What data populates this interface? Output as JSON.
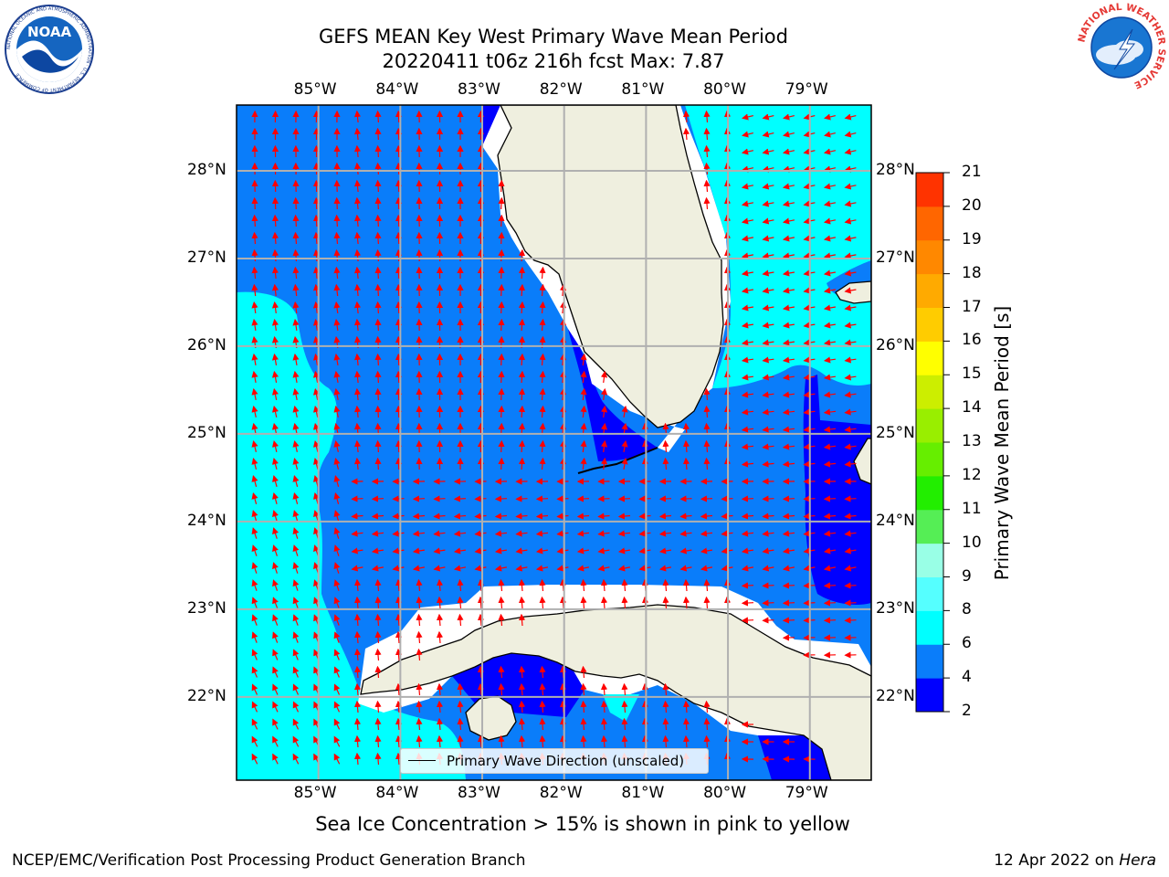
{
  "title_line1": "GEFS MEAN Key West Primary Wave Mean Period",
  "title_line2": "20220411 t06z 216h fcst   Max: 7.87",
  "logos": {
    "noaa_text": "NOAA",
    "noaa_ring": "NATIONAL OCEANIC AND ATMOSPHERIC ADMINISTRATION · U.S. DEPARTMENT OF COMMERCE",
    "nws_ring": "NATIONAL WEATHER SERVICE"
  },
  "map": {
    "lon_labels": [
      "85°W",
      "84°W",
      "83°W",
      "82°W",
      "81°W",
      "80°W",
      "79°W"
    ],
    "lat_labels": [
      "28°N",
      "27°N",
      "26°N",
      "25°N",
      "24°N",
      "23°N",
      "22°N"
    ],
    "lon_range": [
      -86,
      -78.25
    ],
    "lat_range": [
      21.05,
      28.75
    ],
    "land_color": "#efefdf",
    "period_colors": {
      "2-4": "#0000ff",
      "4-6": "#0a7dfa",
      "6-8": "#00ffff"
    }
  },
  "colorbar": {
    "label": "Primary Wave Mean Period [s]",
    "ticks": [
      "2",
      "4",
      "6",
      "8",
      "9",
      "10",
      "11",
      "12",
      "13",
      "14",
      "15",
      "16",
      "17",
      "18",
      "19",
      "20",
      "21"
    ],
    "colors": [
      "#0000ff",
      "#0a7dfa",
      "#00ffff",
      "#55ffff",
      "#99ffe6",
      "#55ee55",
      "#22ee00",
      "#66ee00",
      "#99ee00",
      "#ccee00",
      "#ffff00",
      "#ffcc00",
      "#ffaa00",
      "#ff8800",
      "#ff6600",
      "#ff3300",
      "#ff0000"
    ]
  },
  "legend": {
    "label": "Primary Wave Direction (unscaled)"
  },
  "footnote": "Sea Ice Concentration > 15% is shown in pink to yellow",
  "credit_left": "NCEP/EMC/Verification Post Processing Product Generation Branch",
  "credit_right_prefix": "12 Apr 2022 on ",
  "credit_right_machine": "Hera"
}
